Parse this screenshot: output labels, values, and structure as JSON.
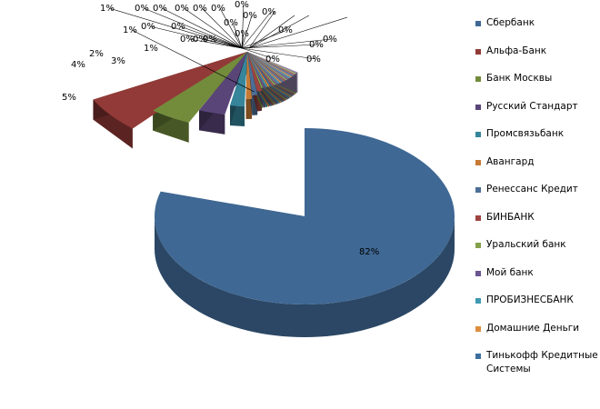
{
  "chart_data": {
    "type": "pie",
    "style": "3d-exploded",
    "title": "",
    "legend_position": "right",
    "slices": [
      {
        "name": "Сбербанк",
        "value": 82,
        "label": "82%",
        "color": "#3f6894"
      },
      {
        "name": "Альфа-Банк",
        "value": 5,
        "label": "5%",
        "color": "#923a37"
      },
      {
        "name": "Банк Москвы",
        "value": 4,
        "label": "4%",
        "color": "#728c3c"
      },
      {
        "name": "Русский Стандарт",
        "value": 3,
        "label": "3%",
        "color": "#5a4579"
      },
      {
        "name": "Промсвязьбанк",
        "value": 2,
        "label": "2%",
        "color": "#36859b"
      },
      {
        "name": "Авангард",
        "value": 1,
        "label": "1%",
        "color": "#c67a33"
      },
      {
        "name": "Ренессанс Кредит",
        "value": 1,
        "label": "1%",
        "color": "#4b6e96"
      },
      {
        "name": "БИНБАНК",
        "value": 1,
        "label": "1%",
        "color": "#9e4340"
      },
      {
        "name": "Уральский банк",
        "value": 0.4,
        "label": "0%",
        "color": "#83a04a"
      },
      {
        "name": "Мой банк",
        "value": 0.4,
        "label": "0%",
        "color": "#6c5590"
      },
      {
        "name": "ПРОБИЗНЕСБАНК",
        "value": 0.3,
        "label": "0%",
        "color": "#3f9ab4"
      },
      {
        "name": "Домашние Деньги",
        "value": 0.3,
        "label": "0%",
        "color": "#dc8e3f"
      },
      {
        "name": "Тинькофф Кредитные Системы",
        "value": 0.3,
        "label": "0%",
        "color": "#3c6f9d"
      },
      {
        "name": "",
        "value": 0.2,
        "label": "0%",
        "color": "#a85a57"
      },
      {
        "name": "",
        "value": 0.2,
        "label": "0%",
        "color": "#92a95a"
      },
      {
        "name": "",
        "value": 0.2,
        "label": "0%",
        "color": "#7b6a9b"
      },
      {
        "name": "",
        "value": 0.2,
        "label": "0%",
        "color": "#4aa8c0"
      },
      {
        "name": "",
        "value": 0.2,
        "label": "0%",
        "color": "#e6a05a"
      },
      {
        "name": "",
        "value": 0.2,
        "label": "0%",
        "color": "#5a82ad"
      },
      {
        "name": "",
        "value": 0.2,
        "label": "0%",
        "color": "#b46a66"
      },
      {
        "name": "",
        "value": 0.2,
        "label": "0%",
        "color": "#a2b56b"
      },
      {
        "name": "",
        "value": 0.2,
        "label": "0%",
        "color": "#8a79a6"
      },
      {
        "name": "",
        "value": 0.1,
        "label": "0%",
        "color": "#5db3c9"
      },
      {
        "name": "",
        "value": 0.1,
        "label": "0%",
        "color": "#ecb070"
      },
      {
        "name": "",
        "value": 0.1,
        "label": "0%",
        "color": "#6a90b8"
      },
      {
        "name": "",
        "value": 0.1,
        "label": "0%",
        "color": "#bf7a77"
      },
      {
        "name": "",
        "value": 0.1,
        "label": "0%",
        "color": "#b0c07d"
      },
      {
        "name": "",
        "value": 0.1,
        "label": "0%",
        "color": "#9888b2"
      }
    ]
  }
}
